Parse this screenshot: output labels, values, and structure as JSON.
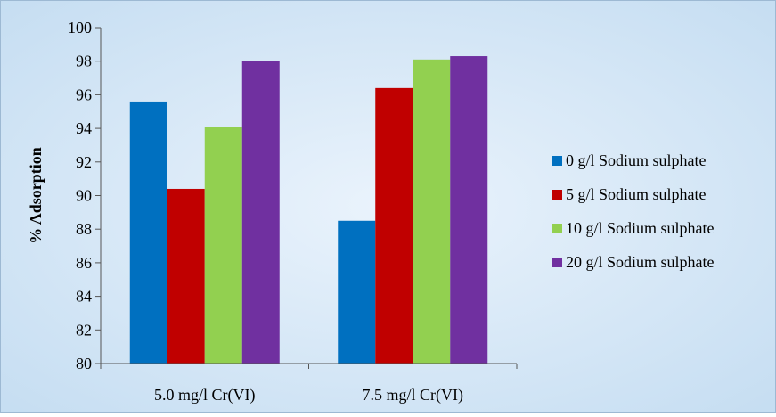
{
  "chart_data": {
    "type": "bar",
    "title": "",
    "xlabel": "",
    "ylabel": "% Adsorption",
    "ylim": [
      80,
      100
    ],
    "ytick_step": 2,
    "yticks": [
      "80",
      "82",
      "84",
      "86",
      "88",
      "90",
      "92",
      "94",
      "96",
      "98",
      "100"
    ],
    "categories": [
      "5.0 mg/l Cr(VI)",
      "7.5 mg/l Cr(VI)"
    ],
    "series": [
      {
        "name": "0 g/l Sodium sulphate",
        "color": "#0070C0",
        "values": [
          95.6,
          88.5
        ]
      },
      {
        "name": "5 g/l Sodium sulphate",
        "color": "#C00000",
        "values": [
          90.4,
          96.4
        ]
      },
      {
        "name": "10 g/l Sodium sulphate",
        "color": "#92D050",
        "values": [
          94.1,
          98.1
        ]
      },
      {
        "name": "20 g/l Sodium sulphate",
        "color": "#7030A0",
        "values": [
          98.0,
          98.3
        ]
      }
    ],
    "grid": false,
    "legend": "right",
    "background": "light-blue-gradient"
  }
}
